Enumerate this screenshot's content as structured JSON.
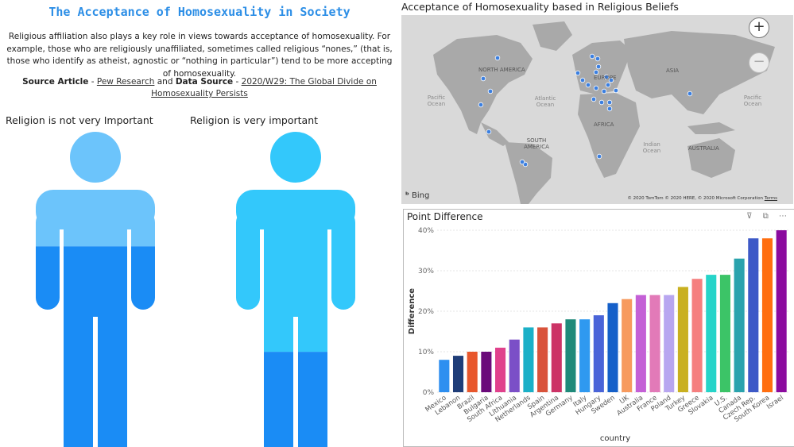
{
  "left": {
    "title": "The Acceptance of Homosexuality in Society",
    "description": "Religious affiliation also plays a key role in views towards acceptance of homosexuality. For example, those who are religiously unaffiliated, sometimes called religious “nones,” (that is, those who identify as atheist, agnostic or “nothing in particular”) tend to be more accepting of homosexuality.",
    "source_article_label": "Source Article",
    "dash1": " - ",
    "source_article_link": "Pew Research",
    "and_text": " and ",
    "data_source_label": "Data Source",
    "dash2": " - ",
    "data_source_link": "2020/W29: The Global Divide on Homosexuality Persists",
    "figure1_label": "Religion is not very Important",
    "figure2_label": "Religion is very important",
    "figure1_fill_fraction": 0.22,
    "figure2_fill_fraction": 0.63,
    "colors": {
      "dark": "#1a8cf5",
      "light1": "#6cc4fb",
      "light2": "#33c8fb"
    }
  },
  "map": {
    "title": "Acceptance of Homosexuality based in Religious Beliefs",
    "labels": [
      "NORTH AMERICA",
      "EUROPE",
      "ASIA",
      "AFRICA",
      "SOUTH AMERICA",
      "AUSTRALIA"
    ],
    "oceans": [
      "Pacific Ocean",
      "Atlantic Ocean",
      "Indian Ocean",
      "Pacific Ocean"
    ],
    "zoom_in": "+",
    "zoom_out": "−",
    "bing": "Bing",
    "credit": "© 2020 TomTom © 2020 HERE, © 2020 Microsoft Corporation",
    "terms": "Terms"
  },
  "chart_panel": {
    "icons": "⊽ ⧉ ⋯"
  },
  "chart_data": {
    "type": "bar",
    "title": "Point Difference",
    "xlabel": "country",
    "ylabel": "Difference",
    "ylim": [
      0,
      40
    ],
    "yticks": [
      "0%",
      "10%",
      "20%",
      "30%",
      "40%"
    ],
    "grid": true,
    "categories": [
      "Mexico",
      "Lebanon",
      "Brazil",
      "Bulgaria",
      "South Africa",
      "Lithuania",
      "Netherlands",
      "Spain",
      "Argentina",
      "Germany",
      "Italy",
      "Hungary",
      "Sweden",
      "UK",
      "Australia",
      "France",
      "Poland",
      "Turkey",
      "Greece",
      "Slovakia",
      "U.S.",
      "Canada",
      "Czech Rep.",
      "South Korea",
      "Israel"
    ],
    "values": [
      8,
      9,
      10,
      10,
      11,
      13,
      16,
      16,
      17,
      18,
      18,
      19,
      22,
      23,
      24,
      24,
      24,
      26,
      28,
      29,
      29,
      33,
      38,
      38,
      40
    ],
    "colors": [
      "#2e8ff0",
      "#1f3d78",
      "#e8572c",
      "#6b0a7a",
      "#e0418c",
      "#7b4fc7",
      "#1bb0c7",
      "#d9533b",
      "#cc3366",
      "#1f8a7a",
      "#2f99f0",
      "#4a64d8",
      "#1560c9",
      "#f79a5e",
      "#c460d6",
      "#e27ab8",
      "#b8a6f0",
      "#c9b020",
      "#f57f7f",
      "#26d4c9",
      "#3cc467",
      "#2aa3ad",
      "#3d59c7",
      "#ff6e10",
      "#8b0a9e",
      "#e60f99"
    ]
  }
}
